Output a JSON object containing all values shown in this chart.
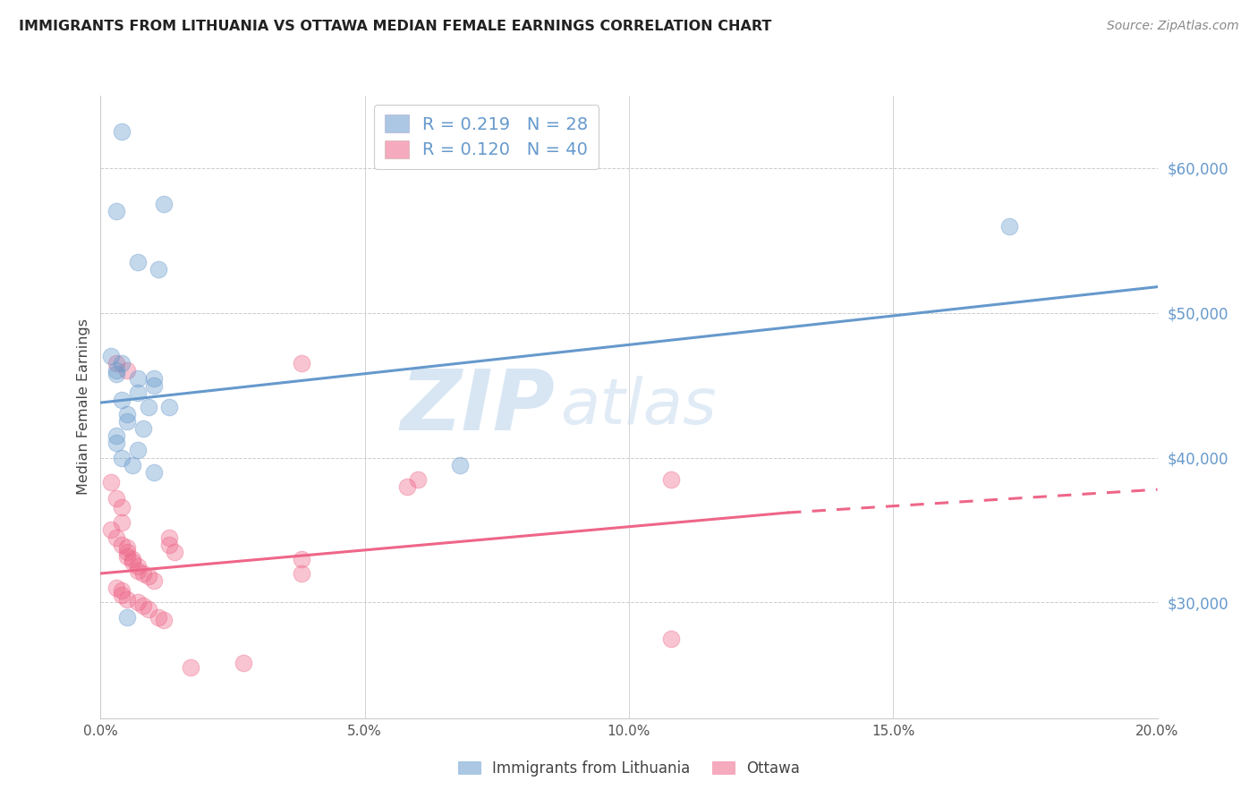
{
  "title": "IMMIGRANTS FROM LITHUANIA VS OTTAWA MEDIAN FEMALE EARNINGS CORRELATION CHART",
  "source": "Source: ZipAtlas.com",
  "ylabel": "Median Female Earnings",
  "right_ytick_labels": [
    "$30,000",
    "$40,000",
    "$50,000",
    "$60,000"
  ],
  "right_ytick_values": [
    30000,
    40000,
    50000,
    60000
  ],
  "xlim": [
    0.0,
    0.2
  ],
  "ylim": [
    22000,
    65000
  ],
  "xtick_labels": [
    "0.0%",
    "",
    "5.0%",
    "",
    "10.0%",
    "",
    "15.0%",
    "",
    "20.0%"
  ],
  "xtick_values": [
    0.0,
    0.025,
    0.05,
    0.075,
    0.1,
    0.125,
    0.15,
    0.175,
    0.2
  ],
  "bottom_legend": [
    "Immigrants from Lithuania",
    "Ottawa"
  ],
  "blue_line": {
    "x0": 0.0,
    "y0": 43800,
    "x1": 0.2,
    "y1": 51800
  },
  "pink_line_solid": {
    "x0": 0.0,
    "y0": 32000,
    "x1": 0.13,
    "y1": 36200
  },
  "pink_line_dashed": {
    "x0": 0.13,
    "y0": 36200,
    "x1": 0.2,
    "y1": 37800
  },
  "blue_color": "#6699cc",
  "pink_color": "#ee6688",
  "blue_scatter": [
    [
      0.004,
      62500
    ],
    [
      0.012,
      57500
    ],
    [
      0.003,
      57000
    ],
    [
      0.007,
      53500
    ],
    [
      0.011,
      53000
    ],
    [
      0.002,
      47000
    ],
    [
      0.004,
      46500
    ],
    [
      0.003,
      46000
    ],
    [
      0.003,
      45800
    ],
    [
      0.007,
      45500
    ],
    [
      0.01,
      45500
    ],
    [
      0.01,
      45000
    ],
    [
      0.007,
      44500
    ],
    [
      0.004,
      44000
    ],
    [
      0.009,
      43500
    ],
    [
      0.005,
      43000
    ],
    [
      0.005,
      42500
    ],
    [
      0.008,
      42000
    ],
    [
      0.003,
      41500
    ],
    [
      0.003,
      41000
    ],
    [
      0.007,
      40500
    ],
    [
      0.004,
      40000
    ],
    [
      0.006,
      39500
    ],
    [
      0.01,
      39000
    ],
    [
      0.013,
      43500
    ],
    [
      0.068,
      39500
    ],
    [
      0.172,
      56000
    ],
    [
      0.005,
      29000
    ]
  ],
  "pink_scatter": [
    [
      0.002,
      38300
    ],
    [
      0.003,
      37200
    ],
    [
      0.004,
      36600
    ],
    [
      0.003,
      46500
    ],
    [
      0.005,
      46000
    ],
    [
      0.004,
      35500
    ],
    [
      0.002,
      35000
    ],
    [
      0.003,
      34500
    ],
    [
      0.004,
      34000
    ],
    [
      0.005,
      33800
    ],
    [
      0.005,
      33500
    ],
    [
      0.005,
      33200
    ],
    [
      0.006,
      33000
    ],
    [
      0.006,
      32800
    ],
    [
      0.007,
      32500
    ],
    [
      0.007,
      32200
    ],
    [
      0.008,
      32000
    ],
    [
      0.009,
      31800
    ],
    [
      0.01,
      31500
    ],
    [
      0.003,
      31000
    ],
    [
      0.004,
      30800
    ],
    [
      0.004,
      30500
    ],
    [
      0.005,
      30200
    ],
    [
      0.007,
      30000
    ],
    [
      0.008,
      29800
    ],
    [
      0.009,
      29500
    ],
    [
      0.011,
      29000
    ],
    [
      0.012,
      28800
    ],
    [
      0.013,
      34500
    ],
    [
      0.013,
      34000
    ],
    [
      0.014,
      33500
    ],
    [
      0.038,
      46500
    ],
    [
      0.038,
      33000
    ],
    [
      0.038,
      32000
    ],
    [
      0.058,
      38000
    ],
    [
      0.06,
      38500
    ],
    [
      0.108,
      38500
    ],
    [
      0.108,
      27500
    ],
    [
      0.017,
      25500
    ],
    [
      0.027,
      25800
    ]
  ],
  "watermark_zip": "ZIP",
  "watermark_atlas": "atlas",
  "background_color": "#ffffff",
  "grid_color": "#cccccc"
}
